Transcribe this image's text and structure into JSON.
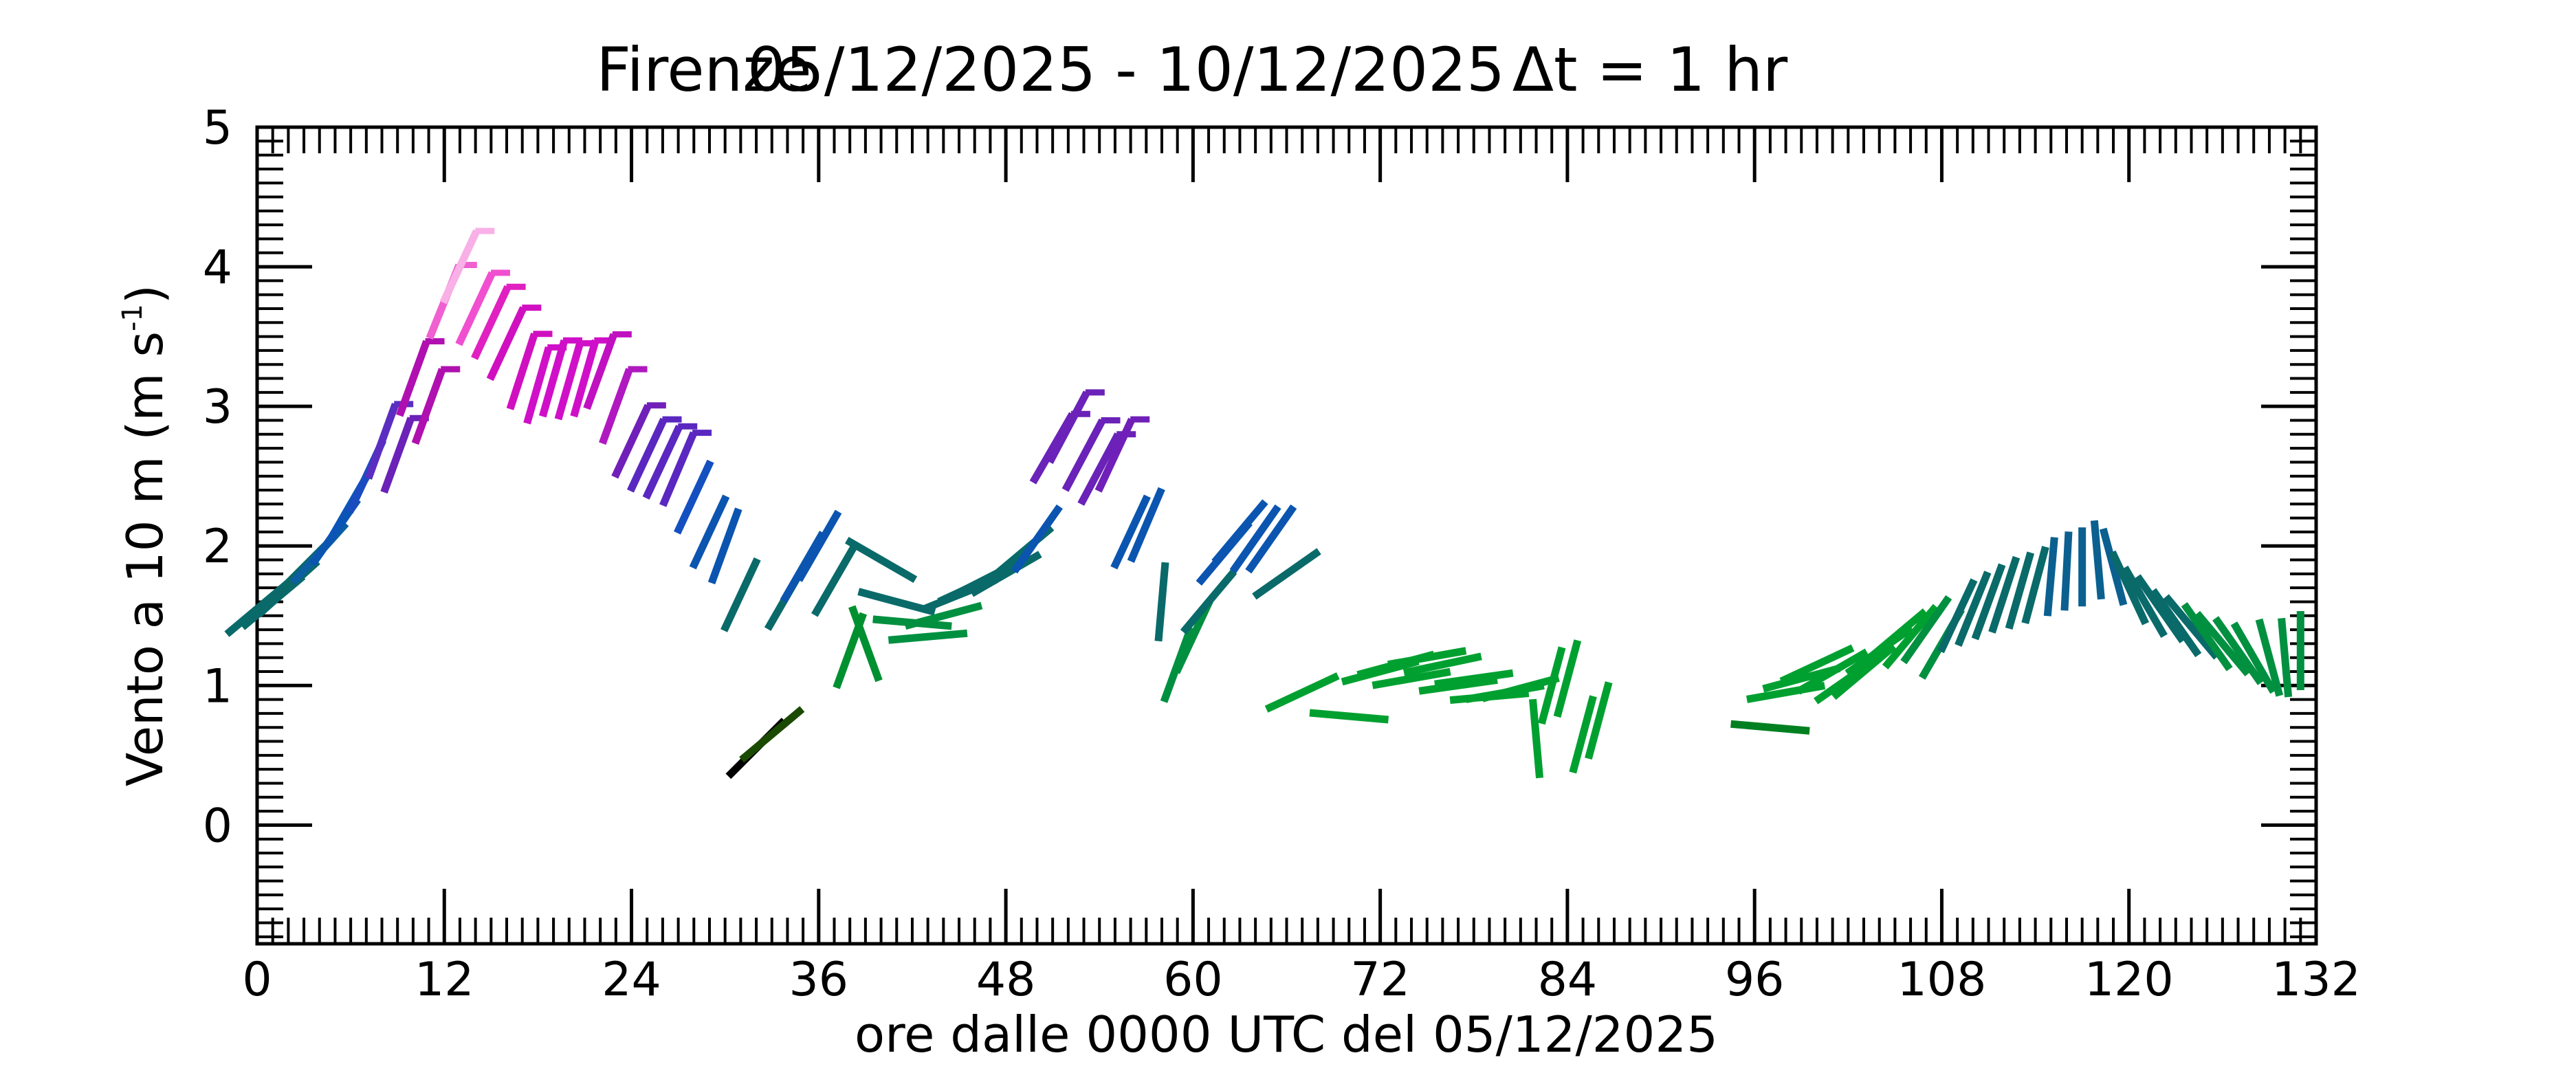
{
  "chart_data": {
    "type": "scatter",
    "title_parts": [
      "Firenze",
      "05/12/2025 - 10/12/2025",
      "Δt = 1 hr"
    ],
    "xlabel": "ore dalle 0000 UTC del 05/12/2025",
    "ylabel_main": "Vento a 10 m (m s",
    "ylabel_sup": "-1",
    "ylabel_close": ")",
    "xlim": [
      0,
      132
    ],
    "ylim": [
      -0.85,
      5
    ],
    "x_ticks": [
      "0",
      "12",
      "24",
      "36",
      "48",
      "60",
      "72",
      "84",
      "96",
      "108",
      "120",
      "132"
    ],
    "y_ticks": [
      "0",
      "1",
      "2",
      "3",
      "4",
      "5"
    ],
    "glyph": "wind direction stick centered at (hour, speed); oriented by direction; short barb at top for speeds above ~2.5 m/s",
    "points": [
      {
        "x": 0,
        "y": 1.55,
        "dir": 230,
        "color": "#0a6a6a"
      },
      {
        "x": 1,
        "y": 1.6,
        "dir": 230,
        "color": "#0a6a6a"
      },
      {
        "x": 2,
        "y": 1.7,
        "dir": 228,
        "color": "#0a6a6a"
      },
      {
        "x": 3,
        "y": 1.85,
        "dir": 225,
        "color": "#0a6868"
      },
      {
        "x": 4,
        "y": 1.95,
        "dir": 222,
        "color": "#0b5ea0"
      },
      {
        "x": 5,
        "y": 2.1,
        "dir": 215,
        "color": "#0b55b0"
      },
      {
        "x": 6,
        "y": 2.3,
        "dir": 210,
        "color": "#0b55b8"
      },
      {
        "x": 7,
        "y": 2.5,
        "dir": 205,
        "color": "#1a4cc0"
      },
      {
        "x": 8,
        "y": 2.75,
        "dir": 200,
        "color": "#5a2ec0"
      },
      {
        "x": 9,
        "y": 2.65,
        "dir": 200,
        "color": "#6a22b8"
      },
      {
        "x": 10,
        "y": 3.2,
        "dir": 200,
        "color": "#b010b0"
      },
      {
        "x": 11,
        "y": 3.0,
        "dir": 200,
        "color": "#b010b0"
      },
      {
        "x": 12,
        "y": 3.75,
        "dir": 202,
        "color": "#f060d0"
      },
      {
        "x": 13,
        "y": 4.0,
        "dir": 205,
        "color": "#f8b0e6"
      },
      {
        "x": 14,
        "y": 3.7,
        "dir": 205,
        "color": "#f050d0"
      },
      {
        "x": 15,
        "y": 3.6,
        "dir": 205,
        "color": "#e020c0"
      },
      {
        "x": 16,
        "y": 3.45,
        "dir": 205,
        "color": "#d010c0"
      },
      {
        "x": 17,
        "y": 3.25,
        "dir": 198,
        "color": "#d010c0"
      },
      {
        "x": 18,
        "y": 3.15,
        "dir": 196,
        "color": "#d010c8"
      },
      {
        "x": 19,
        "y": 3.2,
        "dir": 196,
        "color": "#d010c8"
      },
      {
        "x": 20,
        "y": 3.18,
        "dir": 196,
        "color": "#d010c8"
      },
      {
        "x": 21,
        "y": 3.2,
        "dir": 196,
        "color": "#d010c8"
      },
      {
        "x": 22,
        "y": 3.25,
        "dir": 200,
        "color": "#c010c0"
      },
      {
        "x": 23,
        "y": 3.0,
        "dir": 200,
        "color": "#b018c0"
      },
      {
        "x": 24,
        "y": 2.75,
        "dir": 205,
        "color": "#7020b8"
      },
      {
        "x": 25,
        "y": 2.65,
        "dir": 205,
        "color": "#5a28c0"
      },
      {
        "x": 26,
        "y": 2.6,
        "dir": 205,
        "color": "#5a28c0"
      },
      {
        "x": 27,
        "y": 2.55,
        "dir": 203,
        "color": "#5a28c0"
      },
      {
        "x": 28,
        "y": 2.35,
        "dir": 205,
        "color": "#1450c0"
      },
      {
        "x": 29,
        "y": 2.1,
        "dir": 205,
        "color": "#0b55b0"
      },
      {
        "x": 30,
        "y": 2.0,
        "dir": 200,
        "color": "#0b55b0"
      },
      {
        "x": 31,
        "y": 1.65,
        "dir": 205,
        "color": "#0a6a6a"
      },
      {
        "x": 32,
        "y": 0.55,
        "dir": 225,
        "color": "#000000"
      },
      {
        "x": 33,
        "y": 0.65,
        "dir": 230,
        "color": "#1a4a00"
      },
      {
        "x": 34,
        "y": 1.65,
        "dir": 210,
        "color": "#0a6a6a"
      },
      {
        "x": 35,
        "y": 1.85,
        "dir": 210,
        "color": "#0b55b0"
      },
      {
        "x": 36,
        "y": 2.0,
        "dir": 210,
        "color": "#0b55b0"
      },
      {
        "x": 37,
        "y": 1.75,
        "dir": 210,
        "color": "#0a6a6a"
      },
      {
        "x": 38,
        "y": 1.25,
        "dir": 200,
        "color": "#009030"
      },
      {
        "x": 39,
        "y": 1.3,
        "dir": 160,
        "color": "#009030"
      },
      {
        "x": 40,
        "y": 1.9,
        "dir": 300,
        "color": "#0a6a6a"
      },
      {
        "x": 41,
        "y": 1.6,
        "dir": 285,
        "color": "#0a6a6a"
      },
      {
        "x": 42,
        "y": 1.45,
        "dir": 275,
        "color": "#009040"
      },
      {
        "x": 43,
        "y": 1.35,
        "dir": 265,
        "color": "#009040"
      },
      {
        "x": 44,
        "y": 1.5,
        "dir": 255,
        "color": "#009040"
      },
      {
        "x": 45,
        "y": 1.65,
        "dir": 248,
        "color": "#0a6a6a"
      },
      {
        "x": 46,
        "y": 1.72,
        "dir": 245,
        "color": "#0a6a6a"
      },
      {
        "x": 47,
        "y": 1.78,
        "dir": 243,
        "color": "#0a6a6a"
      },
      {
        "x": 48,
        "y": 1.8,
        "dir": 240,
        "color": "#0a6a6a"
      },
      {
        "x": 49,
        "y": 1.95,
        "dir": 230,
        "color": "#0a6a6a"
      },
      {
        "x": 50,
        "y": 2.05,
        "dir": 215,
        "color": "#0b55b0"
      },
      {
        "x": 51,
        "y": 2.7,
        "dir": 210,
        "color": "#6a22b8"
      },
      {
        "x": 52,
        "y": 2.85,
        "dir": 208,
        "color": "#6a22b8"
      },
      {
        "x": 53,
        "y": 2.65,
        "dir": 208,
        "color": "#6a22b8"
      },
      {
        "x": 54,
        "y": 2.55,
        "dir": 208,
        "color": "#6a22b8"
      },
      {
        "x": 55,
        "y": 2.65,
        "dir": 205,
        "color": "#7020b8"
      },
      {
        "x": 56,
        "y": 2.1,
        "dir": 205,
        "color": "#0b55b0"
      },
      {
        "x": 57,
        "y": 2.15,
        "dir": 203,
        "color": "#0b55b0"
      },
      {
        "x": 58,
        "y": 1.6,
        "dir": 185,
        "color": "#0a6a6a"
      },
      {
        "x": 59,
        "y": 1.15,
        "dir": 200,
        "color": "#009040"
      },
      {
        "x": 60,
        "y": 1.35,
        "dir": 205,
        "color": "#009040"
      },
      {
        "x": 61,
        "y": 1.6,
        "dir": 220,
        "color": "#0a6a6a"
      },
      {
        "x": 62,
        "y": 1.95,
        "dir": 220,
        "color": "#0b55b0"
      },
      {
        "x": 63,
        "y": 2.1,
        "dir": 220,
        "color": "#0b55b0"
      },
      {
        "x": 64,
        "y": 2.05,
        "dir": 215,
        "color": "#0b55b0"
      },
      {
        "x": 65,
        "y": 2.05,
        "dir": 215,
        "color": "#0b55b0"
      },
      {
        "x": 66,
        "y": 1.8,
        "dir": 235,
        "color": "#0a6a6a"
      },
      {
        "x": 67,
        "y": 0.95,
        "dir": 245,
        "color": "#00a030"
      },
      {
        "x": 70,
        "y": 0.78,
        "dir": 275,
        "color": "#00a030"
      },
      {
        "x": 72,
        "y": 1.1,
        "dir": 255,
        "color": "#00a030"
      },
      {
        "x": 73,
        "y": 1.15,
        "dir": 255,
        "color": "#00a030"
      },
      {
        "x": 74,
        "y": 1.05,
        "dir": 260,
        "color": "#00a030"
      },
      {
        "x": 75,
        "y": 1.2,
        "dir": 260,
        "color": "#00a030"
      },
      {
        "x": 76,
        "y": 1.15,
        "dir": 258,
        "color": "#00a030"
      },
      {
        "x": 77,
        "y": 1.0,
        "dir": 262,
        "color": "#00a030"
      },
      {
        "x": 78,
        "y": 1.05,
        "dir": 262,
        "color": "#00a030"
      },
      {
        "x": 79,
        "y": 0.92,
        "dir": 265,
        "color": "#00a030"
      },
      {
        "x": 80,
        "y": 0.95,
        "dir": 260,
        "color": "#00a030"
      },
      {
        "x": 81,
        "y": 0.98,
        "dir": 255,
        "color": "#00a030"
      },
      {
        "x": 82,
        "y": 0.62,
        "dir": 175,
        "color": "#00a030"
      },
      {
        "x": 83,
        "y": 1.0,
        "dir": 195,
        "color": "#00a030"
      },
      {
        "x": 84,
        "y": 1.05,
        "dir": 195,
        "color": "#00a030"
      },
      {
        "x": 85,
        "y": 0.65,
        "dir": 195,
        "color": "#00a030"
      },
      {
        "x": 86,
        "y": 0.75,
        "dir": 195,
        "color": "#00a030"
      },
      {
        "x": 97,
        "y": 0.7,
        "dir": 275,
        "color": "#008020"
      },
      {
        "x": 98,
        "y": 0.95,
        "dir": 260,
        "color": "#00a030"
      },
      {
        "x": 99,
        "y": 1.05,
        "dir": 255,
        "color": "#00a030"
      },
      {
        "x": 100,
        "y": 1.15,
        "dir": 245,
        "color": "#00a030"
      },
      {
        "x": 101,
        "y": 1.1,
        "dir": 240,
        "color": "#00a030"
      },
      {
        "x": 102,
        "y": 1.05,
        "dir": 235,
        "color": "#00a030"
      },
      {
        "x": 103,
        "y": 1.1,
        "dir": 230,
        "color": "#00a030"
      },
      {
        "x": 104,
        "y": 1.25,
        "dir": 235,
        "color": "#00a030"
      },
      {
        "x": 105,
        "y": 1.35,
        "dir": 230,
        "color": "#00a030"
      },
      {
        "x": 106,
        "y": 1.35,
        "dir": 220,
        "color": "#00a030"
      },
      {
        "x": 107,
        "y": 1.4,
        "dir": 215,
        "color": "#009040"
      },
      {
        "x": 108,
        "y": 1.3,
        "dir": 210,
        "color": "#009040"
      },
      {
        "x": 109,
        "y": 1.5,
        "dir": 205,
        "color": "#0a6a6a"
      },
      {
        "x": 110,
        "y": 1.55,
        "dir": 202,
        "color": "#0a6a6a"
      },
      {
        "x": 111,
        "y": 1.6,
        "dir": 200,
        "color": "#0a6a6a"
      },
      {
        "x": 112,
        "y": 1.65,
        "dir": 198,
        "color": "#0a6a6a"
      },
      {
        "x": 113,
        "y": 1.68,
        "dir": 196,
        "color": "#0a6a6a"
      },
      {
        "x": 114,
        "y": 1.72,
        "dir": 195,
        "color": "#0a6a6a"
      },
      {
        "x": 115,
        "y": 1.78,
        "dir": 185,
        "color": "#0b6090"
      },
      {
        "x": 116,
        "y": 1.82,
        "dir": 183,
        "color": "#0b6090"
      },
      {
        "x": 117,
        "y": 1.85,
        "dir": 180,
        "color": "#0b6090"
      },
      {
        "x": 118,
        "y": 1.9,
        "dir": 175,
        "color": "#0b6090"
      },
      {
        "x": 119,
        "y": 1.85,
        "dir": 165,
        "color": "#0b6090"
      },
      {
        "x": 120,
        "y": 1.7,
        "dir": 155,
        "color": "#0a6a6a"
      },
      {
        "x": 121,
        "y": 1.6,
        "dir": 150,
        "color": "#0a6a6a"
      },
      {
        "x": 122,
        "y": 1.55,
        "dir": 145,
        "color": "#0a6a6a"
      },
      {
        "x": 123,
        "y": 1.45,
        "dir": 145,
        "color": "#0a6a6a"
      },
      {
        "x": 124,
        "y": 1.42,
        "dir": 140,
        "color": "#0a6a6a"
      },
      {
        "x": 125,
        "y": 1.35,
        "dir": 145,
        "color": "#009040"
      },
      {
        "x": 126,
        "y": 1.3,
        "dir": 140,
        "color": "#009040"
      },
      {
        "x": 127,
        "y": 1.25,
        "dir": 145,
        "color": "#009040"
      },
      {
        "x": 128,
        "y": 1.2,
        "dir": 150,
        "color": "#009040"
      },
      {
        "x": 129,
        "y": 1.2,
        "dir": 165,
        "color": "#009040"
      },
      {
        "x": 130,
        "y": 1.2,
        "dir": 175,
        "color": "#009040"
      },
      {
        "x": 131,
        "y": 1.25,
        "dir": 180,
        "color": "#009040"
      }
    ]
  }
}
